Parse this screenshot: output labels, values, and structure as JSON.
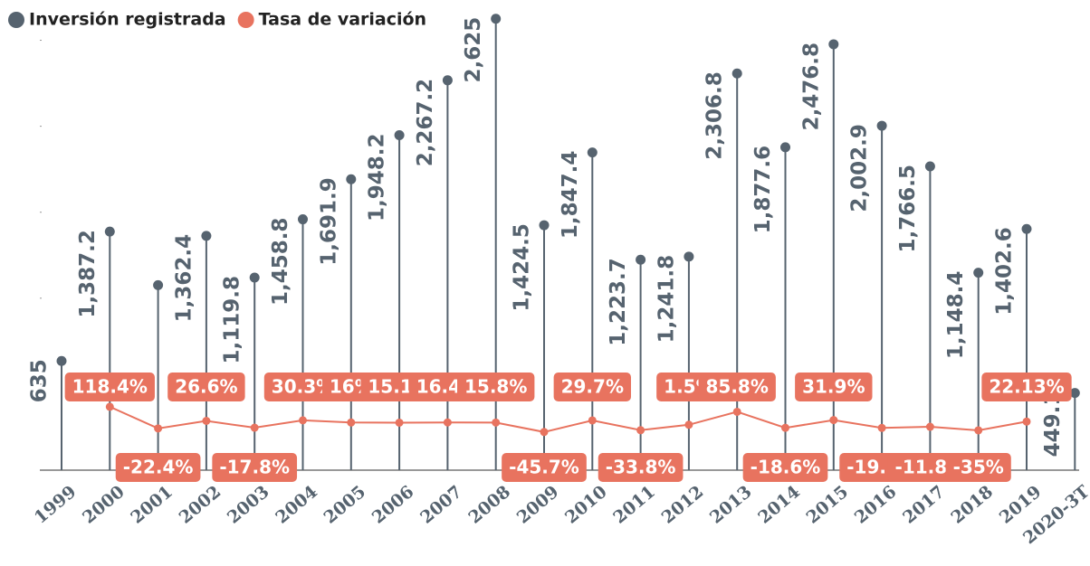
{
  "chart_data": {
    "type": "lollipop-line",
    "categories": [
      "1999",
      "2000",
      "2001",
      "2002",
      "2003",
      "2004",
      "2005",
      "2006",
      "2007",
      "2008",
      "2009",
      "2010",
      "2011",
      "2012",
      "2013",
      "2014",
      "2015",
      "2016",
      "2017",
      "2018",
      "2019",
      "2020-3T"
    ],
    "series": [
      {
        "name": "Inversión registrada",
        "color": "#56636f",
        "values": [
          635,
          1387.2,
          1076,
          1362.4,
          1119.8,
          1458.8,
          1691.9,
          1948.2,
          2267.2,
          2625,
          1424.5,
          1847.4,
          1223.7,
          1241.8,
          2306.8,
          1877.6,
          2476.8,
          2002.9,
          1766.5,
          1148.4,
          1402.6,
          449.1
        ],
        "value_labels": [
          "635",
          "1,387.2",
          null,
          "1,362.4",
          "1,119.8",
          "1,458.8",
          "1,691.9",
          "1,948.2",
          "2,267.2",
          "2,625",
          "1,424.5",
          "1,847.4",
          "1,223.7",
          "1,241.8",
          "2,306.8",
          "1,877.6",
          "2,476.8",
          "2,002.9",
          "1,766.5",
          "1,148.4",
          "1,402.6",
          "449.1"
        ]
      },
      {
        "name": "Tasa de variación",
        "color": "#e8735f",
        "axis": "y2",
        "values": [
          null,
          118.4,
          -22.4,
          26.6,
          -17.8,
          30.3,
          16,
          15.1,
          16.4,
          15.8,
          -45.7,
          29.7,
          -33.8,
          1.5,
          85.8,
          -18.6,
          31.9,
          -19.1,
          -11.8,
          -35,
          22.13,
          null
        ],
        "value_labels": [
          null,
          "118.4%",
          "-22.4%",
          "26.6%",
          "-17.8%",
          "30.3%",
          "16%",
          "15.1%",
          "16.4%",
          "15.8%",
          "-45.7%",
          "29.7%",
          "-33.8%",
          "1.5%",
          "85.8%",
          "-18.6%",
          "31.9%",
          "-19.1%",
          "-11.8%",
          "-35%",
          "22.13%",
          null
        ]
      }
    ],
    "ylim": [
      0,
      2650
    ],
    "yticks": [
      0,
      500,
      1000,
      1500,
      2000,
      2500
    ],
    "y2lim": [
      -294,
      2671
    ],
    "legend": "top-left"
  }
}
